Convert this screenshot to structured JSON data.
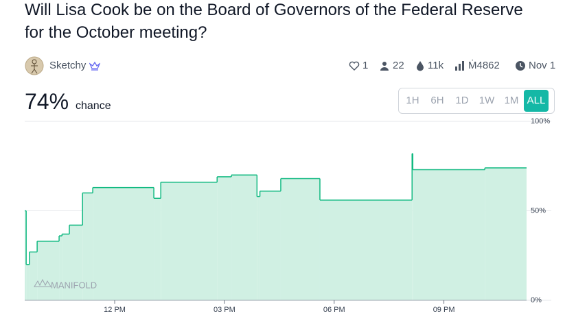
{
  "market": {
    "title": "Will Lisa Cook be on the Board of Governors of the Federal Reserve for the October meeting?",
    "creator": "Sketchy",
    "stats": {
      "likes": "1",
      "traders": "22",
      "volume": "11k",
      "liquidity": "Ṁ4862",
      "close": "Nov 1"
    },
    "probability": "74%",
    "probability_label": "chance",
    "time_ranges": [
      "1H",
      "6H",
      "1D",
      "1W",
      "1M",
      "ALL"
    ],
    "selected_range": "ALL",
    "watermark": "MANIFOLD"
  },
  "chart_data": {
    "type": "step",
    "x": [
      9.54,
      9.58,
      9.67,
      9.88,
      10.48,
      10.56,
      10.76,
      11.12,
      11.4,
      13.07,
      13.26,
      14.8,
      15.19,
      15.89,
      15.97,
      16.54,
      17.61,
      20.13,
      20.15,
      22.12
    ],
    "values": [
      50,
      20,
      27,
      33,
      36,
      37,
      42,
      60,
      63,
      57,
      66,
      69,
      70,
      58,
      61,
      68,
      56,
      82,
      73,
      74
    ],
    "color": "#11b981",
    "fill": "#d0f0e3",
    "xlim": [
      9.54,
      23.26
    ],
    "xticks": [
      {
        "value": 12,
        "label": "12 PM"
      },
      {
        "value": 15,
        "label": "03 PM"
      },
      {
        "value": 18,
        "label": "06 PM"
      },
      {
        "value": 21,
        "label": "09 PM"
      }
    ],
    "ylim": [
      0,
      100
    ],
    "yticks": [
      {
        "value": 0,
        "label": "0%"
      },
      {
        "value": 50,
        "label": "50%"
      },
      {
        "value": 100,
        "label": "100%"
      }
    ],
    "grid": true
  }
}
